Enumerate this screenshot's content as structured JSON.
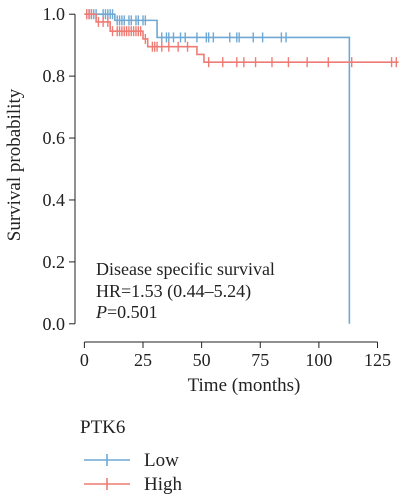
{
  "chart_data": {
    "type": "line",
    "subtype": "kaplan-meier",
    "xlabel": "Time (months)",
    "ylabel": "Survival probability",
    "xlim": [
      -4,
      138
    ],
    "ylim": [
      -0.02,
      1.02
    ],
    "xticks": [
      0,
      25,
      50,
      75,
      100,
      125
    ],
    "yticks": [
      0.0,
      0.2,
      0.4,
      0.6,
      0.8,
      1.0
    ],
    "ytick_labels": [
      "0.0",
      "0.2",
      "0.4",
      "0.6",
      "0.8",
      "1.0"
    ],
    "grid": false,
    "annotations": [
      {
        "text": "Disease specific survival"
      },
      {
        "text": "HR=1.53 (0.44–5.24)"
      },
      {
        "italic_prefix": "P",
        "text": "=0.501"
      }
    ],
    "legend": {
      "title": "PTK6",
      "position": "bottom-left"
    },
    "series": [
      {
        "name": "Low",
        "color": "#6fa8d4",
        "steps": [
          [
            0,
            1.0
          ],
          [
            13,
            0.98
          ],
          [
            31,
            0.925
          ],
          [
            113,
            0.0
          ]
        ],
        "end_x": 113,
        "censor_x": [
          1,
          2,
          3,
          4,
          5,
          8,
          9,
          10,
          11,
          12,
          14,
          15,
          16,
          17,
          19,
          20,
          22,
          23,
          25,
          26,
          33,
          35,
          36,
          38,
          41,
          43,
          48,
          52,
          53,
          55,
          62,
          65,
          66,
          72,
          76,
          84,
          86
        ]
      },
      {
        "name": "High",
        "color": "#ee7c74",
        "steps": [
          [
            0,
            1.0
          ],
          [
            5,
            0.975
          ],
          [
            11,
            0.945
          ],
          [
            25,
            0.92
          ],
          [
            27,
            0.895
          ],
          [
            48,
            0.87
          ],
          [
            51,
            0.845
          ]
        ],
        "end_x": 134,
        "censor_x": [
          1,
          2,
          3,
          6,
          8,
          10,
          12,
          14,
          15,
          16,
          17,
          18,
          19,
          20,
          21,
          22,
          23,
          24,
          26,
          29,
          30,
          31,
          33,
          36,
          40,
          44,
          53,
          59,
          65,
          68,
          73,
          80,
          87,
          95,
          104,
          114,
          131,
          133
        ]
      }
    ]
  }
}
